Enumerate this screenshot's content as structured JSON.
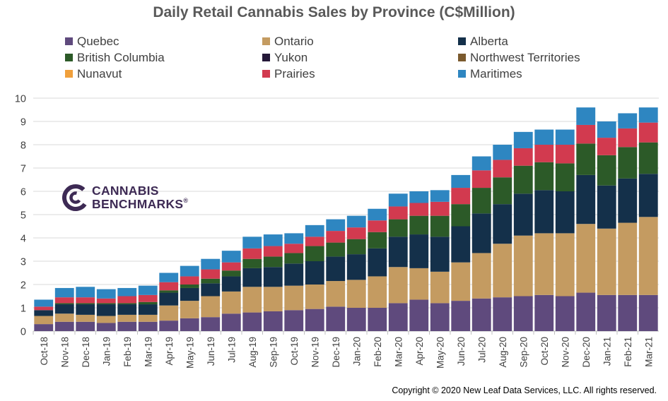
{
  "chart_data": {
    "type": "bar",
    "stacked": true,
    "title": "Daily Retail Cannabis Sales by Province (C$Million)",
    "ylim": [
      0,
      10
    ],
    "yticks": [
      0,
      1,
      2,
      3,
      4,
      5,
      6,
      7,
      8,
      9,
      10
    ],
    "grid": true,
    "legend_position": "top",
    "categories": [
      "Oct-18",
      "Nov-18",
      "Dec-18",
      "Jan-19",
      "Feb-19",
      "Mar-19",
      "Apr-19",
      "May-19",
      "Jun-19",
      "Jul-19",
      "Aug-19",
      "Sep-19",
      "Oct-19",
      "Nov-19",
      "Dec-19",
      "Jan-20",
      "Feb-20",
      "Mar-20",
      "Apr-20",
      "May-20",
      "Jun-20",
      "Jul-20",
      "Aug-20",
      "Sep-20",
      "Oct-20",
      "Nov-20",
      "Dec-20",
      "Jan-21",
      "Feb-21",
      "Mar-21"
    ],
    "series": [
      {
        "name": "Quebec",
        "color": "#5f4a7d",
        "values": [
          0.3,
          0.4,
          0.4,
          0.35,
          0.4,
          0.4,
          0.45,
          0.55,
          0.6,
          0.75,
          0.8,
          0.85,
          0.9,
          0.95,
          1.05,
          1.0,
          1.0,
          1.2,
          1.35,
          1.2,
          1.3,
          1.4,
          1.45,
          1.5,
          1.55,
          1.5,
          1.65,
          1.55,
          1.55,
          1.55
        ]
      },
      {
        "name": "Ontario",
        "color": "#c49b61",
        "values": [
          0.35,
          0.35,
          0.3,
          0.3,
          0.3,
          0.3,
          0.65,
          0.75,
          0.9,
          0.95,
          1.1,
          1.05,
          1.05,
          1.05,
          1.1,
          1.2,
          1.35,
          1.55,
          1.35,
          1.35,
          1.65,
          1.95,
          2.3,
          2.6,
          2.65,
          2.7,
          2.95,
          2.85,
          3.1,
          3.35
        ]
      },
      {
        "name": "Alberta",
        "color": "#14304a",
        "values": [
          0.25,
          0.4,
          0.45,
          0.5,
          0.45,
          0.45,
          0.55,
          0.55,
          0.55,
          0.65,
          0.8,
          0.85,
          0.95,
          1.0,
          1.05,
          1.1,
          1.2,
          1.3,
          1.45,
          1.5,
          1.55,
          1.7,
          1.7,
          1.8,
          1.85,
          1.8,
          2.1,
          1.85,
          1.9,
          1.85
        ]
      },
      {
        "name": "British Columbia",
        "color": "#2c5a28",
        "values": [
          0.0,
          0.05,
          0.05,
          0.05,
          0.05,
          0.1,
          0.1,
          0.15,
          0.2,
          0.25,
          0.4,
          0.45,
          0.45,
          0.65,
          0.6,
          0.65,
          0.7,
          0.75,
          0.8,
          0.9,
          0.95,
          1.1,
          1.15,
          1.2,
          1.2,
          1.2,
          1.35,
          1.3,
          1.35,
          1.35
        ]
      },
      {
        "name": "Yukon",
        "color": "#241838",
        "values": [
          0,
          0,
          0,
          0,
          0,
          0,
          0,
          0,
          0,
          0,
          0,
          0,
          0,
          0,
          0,
          0,
          0,
          0,
          0,
          0,
          0,
          0,
          0,
          0,
          0,
          0,
          0,
          0,
          0,
          0
        ]
      },
      {
        "name": "Northwest Territories",
        "color": "#7b5a2e",
        "values": [
          0,
          0,
          0,
          0,
          0,
          0,
          0,
          0,
          0,
          0,
          0,
          0,
          0,
          0,
          0,
          0,
          0,
          0,
          0,
          0,
          0,
          0,
          0,
          0,
          0,
          0,
          0,
          0,
          0,
          0
        ]
      },
      {
        "name": "Nunavut",
        "color": "#f0a03c",
        "values": [
          0,
          0,
          0,
          0,
          0,
          0,
          0,
          0,
          0,
          0,
          0,
          0,
          0,
          0,
          0,
          0,
          0,
          0,
          0,
          0,
          0,
          0,
          0,
          0,
          0,
          0,
          0,
          0,
          0,
          0
        ]
      },
      {
        "name": "Prairies",
        "color": "#d23a4f",
        "values": [
          0.15,
          0.25,
          0.25,
          0.2,
          0.3,
          0.3,
          0.35,
          0.35,
          0.4,
          0.35,
          0.45,
          0.45,
          0.4,
          0.4,
          0.5,
          0.5,
          0.5,
          0.55,
          0.55,
          0.6,
          0.7,
          0.75,
          0.75,
          0.75,
          0.75,
          0.8,
          0.8,
          0.75,
          0.8,
          0.85
        ]
      },
      {
        "name": "Maritimes",
        "color": "#2e86c1",
        "values": [
          0.3,
          0.4,
          0.45,
          0.4,
          0.35,
          0.4,
          0.4,
          0.45,
          0.45,
          0.5,
          0.5,
          0.5,
          0.45,
          0.5,
          0.5,
          0.5,
          0.5,
          0.55,
          0.5,
          0.5,
          0.55,
          0.6,
          0.65,
          0.7,
          0.65,
          0.65,
          0.75,
          0.7,
          0.65,
          0.65
        ]
      }
    ]
  },
  "logo": {
    "line1": "CANNABIS",
    "line2": "BENCHMARKS",
    "mark": "®"
  },
  "copyright": "Copyright  © 2020  New Leaf Data Services, LLC. All rights reserved."
}
